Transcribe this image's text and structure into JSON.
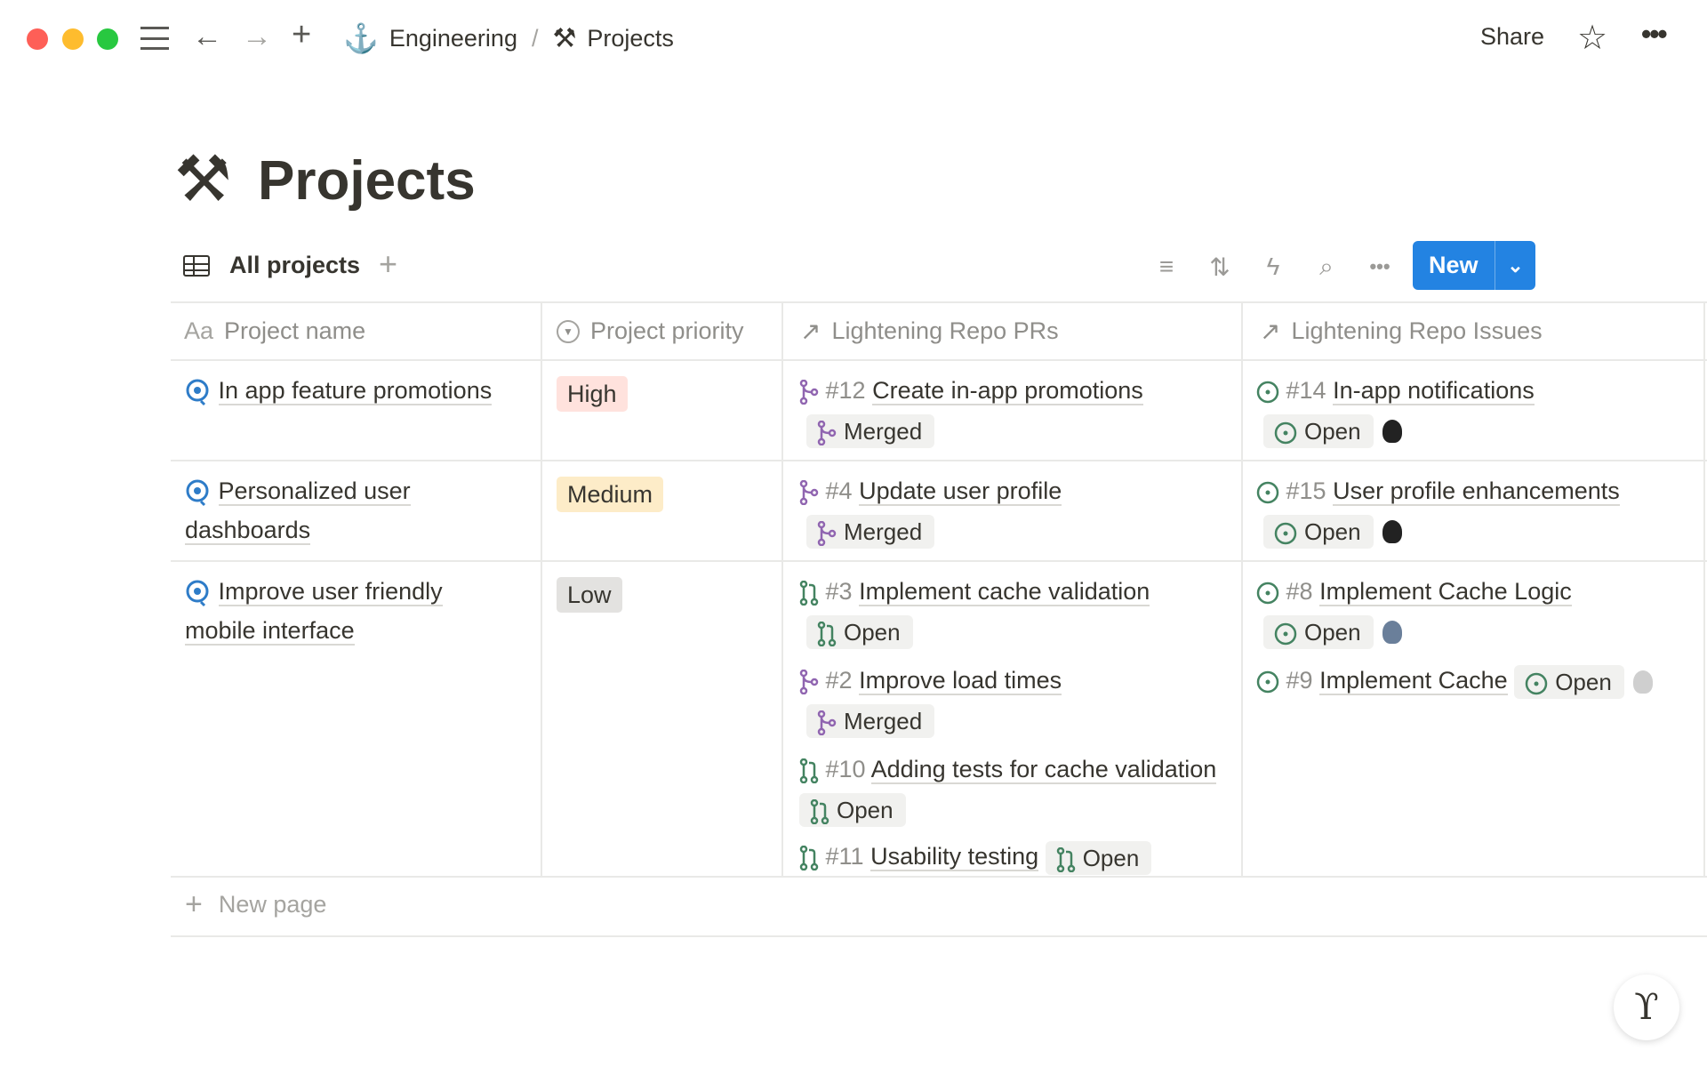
{
  "window": {
    "traffic_lights": [
      "#fe5f57",
      "#febc2e",
      "#28c840"
    ]
  },
  "topbar": {
    "breadcrumb": [
      {
        "label": "Engineering",
        "icon": "anchor-icon"
      },
      {
        "label": "Projects",
        "icon": "hammer-wrench-icon"
      }
    ],
    "separator": "/",
    "share": "Share"
  },
  "page": {
    "title": "Projects",
    "icon": "hammer-wrench-icon"
  },
  "view": {
    "tab": "All projects",
    "new_label": "New"
  },
  "table": {
    "headers": [
      {
        "prefix": "Aa",
        "label": "Project name"
      },
      {
        "label": "Project priority"
      },
      {
        "label": "Lightening Repo PRs"
      },
      {
        "label": "Lightening Repo Issues"
      }
    ],
    "rows": [
      {
        "name": "In app feature promotions",
        "priority": "High",
        "priority_color": "#ffe2dd",
        "prs": [
          {
            "num": "#12",
            "title": "Create in-app promotions",
            "status": "Merged"
          }
        ],
        "issues": [
          {
            "num": "#14",
            "title": "In-app notifications",
            "status": "Open"
          }
        ]
      },
      {
        "name": "Personalized user dashboards",
        "priority": "Medium",
        "priority_color": "#fdecc8",
        "prs": [
          {
            "num": "#4",
            "title": "Update user profile",
            "status": "Merged"
          }
        ],
        "issues": [
          {
            "num": "#15",
            "title": "User profile enhancements",
            "status": "Open"
          }
        ]
      },
      {
        "name": "Improve user friendly mobile interface",
        "priority": "Low",
        "priority_color": "#e3e2e0",
        "prs": [
          {
            "num": "#3",
            "title": "Implement cache validation",
            "status": "Open"
          },
          {
            "num": "#2",
            "title": "Improve load times",
            "status": "Merged"
          },
          {
            "num": "#10",
            "title": "Adding tests for cache validation",
            "status": "Open"
          },
          {
            "num": "#11",
            "title": "Usability testing",
            "status": "Open"
          }
        ],
        "issues": [
          {
            "num": "#8",
            "title": "Implement Cache Logic",
            "status": "Open"
          },
          {
            "num": "#9",
            "title": "Implement Cache",
            "status": "Open"
          }
        ]
      }
    ],
    "new_page": "New page"
  },
  "colors": {
    "merged": "#9065b0",
    "open": "#448361",
    "accent": "#2383e2"
  }
}
